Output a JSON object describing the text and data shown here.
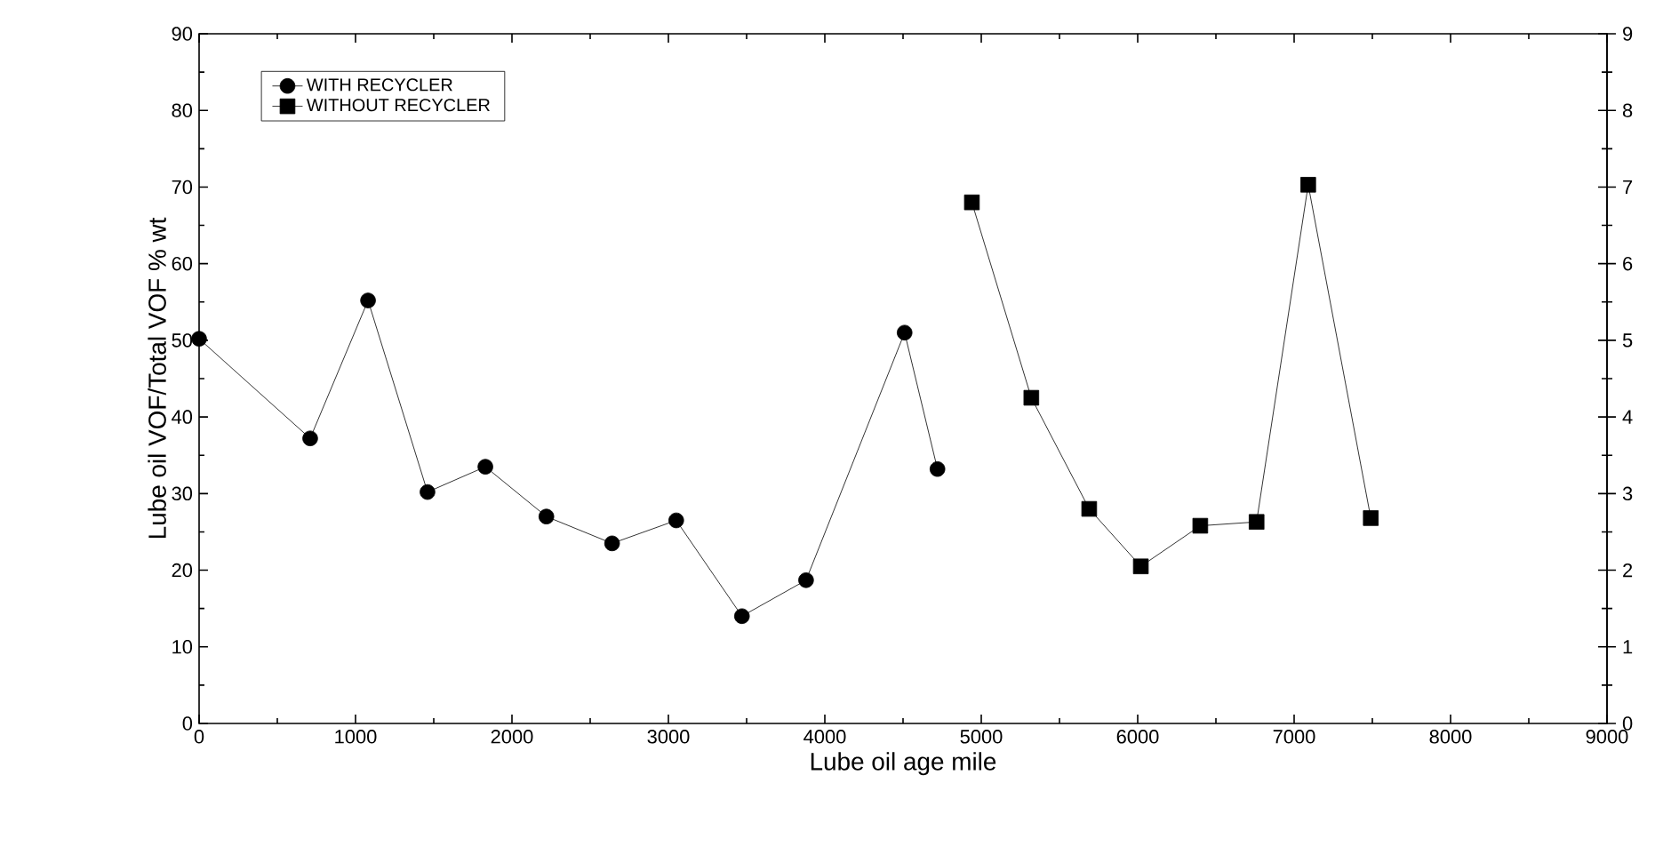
{
  "chart_data": {
    "type": "line",
    "xlabel": "Lube oil age  mile",
    "ylabel": "Lube oil VOF/Total VOF    % wt",
    "xlim": [
      0,
      9000
    ],
    "xticks": [
      0,
      1000,
      2000,
      3000,
      4000,
      5000,
      6000,
      7000,
      8000,
      9000
    ],
    "ylim": [
      0,
      90
    ],
    "yticks": [
      0,
      10,
      20,
      30,
      40,
      50,
      60,
      70,
      80,
      90
    ],
    "y2lim": [
      0,
      9
    ],
    "y2ticks": [
      0,
      1,
      2,
      3,
      4,
      5,
      6,
      7,
      8,
      9
    ],
    "legend": "top left",
    "grid": false,
    "line_style": "solid",
    "series": [
      {
        "name": "WITH RECYCLER",
        "color": "#000000",
        "marker": "circle",
        "x": [
          0,
          710,
          1080,
          1460,
          1830,
          2220,
          2640,
          3050,
          3470,
          3880,
          4510,
          4720
        ],
        "values": [
          50.2,
          37.2,
          55.2,
          30.2,
          33.5,
          27,
          23.5,
          26.5,
          14,
          18.7,
          51,
          33.2
        ]
      },
      {
        "name": "WITHOUT RECYCLER",
        "color": "#000000",
        "marker": "square",
        "x": [
          4940,
          5320,
          5690,
          6020,
          6400,
          6760,
          7090,
          7490
        ],
        "values": [
          68,
          42.5,
          28,
          20.5,
          25.8,
          26.3,
          70.3,
          26.8
        ]
      }
    ]
  }
}
